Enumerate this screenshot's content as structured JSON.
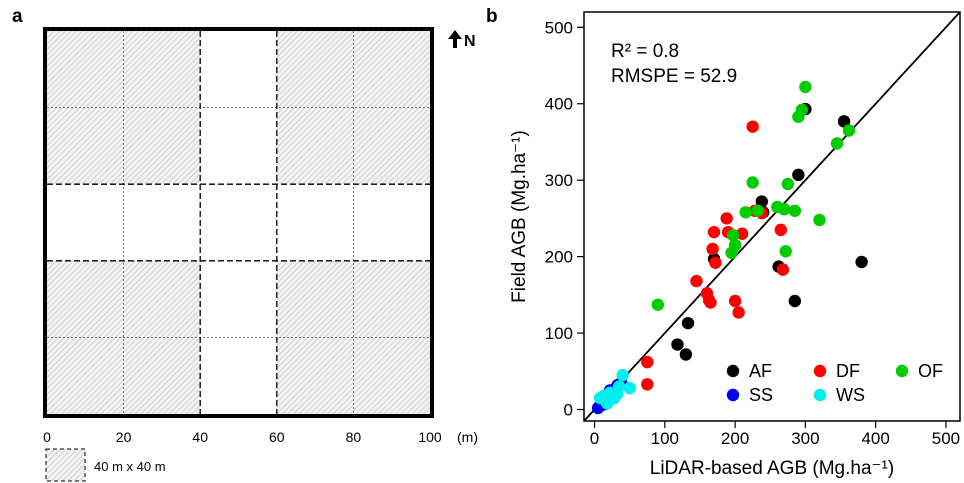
{
  "panel_a": {
    "label": "a",
    "north_label": "N",
    "x_ticks": [
      "0",
      "20",
      "40",
      "60",
      "80",
      "100"
    ],
    "x_unit": "(m)",
    "extent": 100,
    "grid_step": 20,
    "shaded_blocks": [
      {
        "x0": 0,
        "x1": 40,
        "y0": 60,
        "y1": 100
      },
      {
        "x0": 60,
        "x1": 100,
        "y0": 60,
        "y1": 100
      },
      {
        "x0": 0,
        "x1": 40,
        "y0": 0,
        "y1": 40
      },
      {
        "x0": 60,
        "x1": 100,
        "y0": 0,
        "y1": 40
      }
    ],
    "scale_label": "40 m x 40 m"
  },
  "panel_b": {
    "label": "b",
    "r2_text": "R² = 0.8",
    "rmspe_text": "RMSPE = 52.9",
    "colors": {
      "AF": "#000000",
      "DF": "#ff0000",
      "OF": "#00cc00",
      "SS": "#0000ee",
      "WS": "#00eeee"
    }
  },
  "chart_data": {
    "type": "scatter",
    "xlabel": "LiDAR-based AGB (Mg.ha⁻¹)",
    "ylabel": "Field AGB (Mg.ha⁻¹)",
    "xlim": [
      -15,
      520
    ],
    "ylim": [
      -15,
      520
    ],
    "x_ticks": [
      0,
      100,
      200,
      300,
      400,
      500
    ],
    "y_ticks": [
      0,
      100,
      200,
      300,
      400,
      500
    ],
    "reference_line": {
      "type": "1:1",
      "from": [
        -15,
        -15
      ],
      "to": [
        520,
        520
      ]
    },
    "legend_position": "bottom-right",
    "series": [
      {
        "name": "AF",
        "points": [
          [
            10,
            10
          ],
          [
            118,
            85
          ],
          [
            133,
            113
          ],
          [
            130,
            72
          ],
          [
            170,
            197
          ],
          [
            238,
            272
          ],
          [
            240,
            258
          ],
          [
            262,
            187
          ],
          [
            285,
            142
          ],
          [
            300,
            393
          ],
          [
            290,
            307
          ],
          [
            355,
            377
          ],
          [
            380,
            193
          ]
        ]
      },
      {
        "name": "DF",
        "points": [
          [
            75,
            62
          ],
          [
            75,
            33
          ],
          [
            145,
            168
          ],
          [
            160,
            152
          ],
          [
            163,
            143
          ],
          [
            165,
            140
          ],
          [
            168,
            210
          ],
          [
            170,
            232
          ],
          [
            172,
            192
          ],
          [
            188,
            250
          ],
          [
            190,
            232
          ],
          [
            200,
            142
          ],
          [
            205,
            127
          ],
          [
            210,
            230
          ],
          [
            225,
            370
          ],
          [
            228,
            260
          ],
          [
            238,
            257
          ],
          [
            265,
            235
          ],
          [
            268,
            183
          ]
        ]
      },
      {
        "name": "OF",
        "points": [
          [
            90,
            137
          ],
          [
            195,
            205
          ],
          [
            197,
            228
          ],
          [
            200,
            215
          ],
          [
            215,
            258
          ],
          [
            225,
            297
          ],
          [
            232,
            260
          ],
          [
            260,
            265
          ],
          [
            270,
            262
          ],
          [
            272,
            207
          ],
          [
            275,
            295
          ],
          [
            285,
            260
          ],
          [
            290,
            383
          ],
          [
            295,
            392
          ],
          [
            300,
            422
          ],
          [
            320,
            248
          ],
          [
            345,
            348
          ],
          [
            362,
            365
          ]
        ]
      },
      {
        "name": "SS",
        "points": [
          [
            5,
            2
          ],
          [
            8,
            5
          ],
          [
            10,
            8
          ],
          [
            12,
            12
          ],
          [
            14,
            7
          ],
          [
            18,
            15
          ],
          [
            22,
            25
          ],
          [
            25,
            20
          ],
          [
            30,
            28
          ],
          [
            33,
            32
          ],
          [
            38,
            35
          ]
        ]
      },
      {
        "name": "WS",
        "points": [
          [
            8,
            15
          ],
          [
            13,
            18
          ],
          [
            18,
            8
          ],
          [
            22,
            22
          ],
          [
            28,
            15
          ],
          [
            32,
            20
          ],
          [
            35,
            30
          ],
          [
            40,
            45
          ],
          [
            50,
            28
          ]
        ]
      }
    ]
  }
}
